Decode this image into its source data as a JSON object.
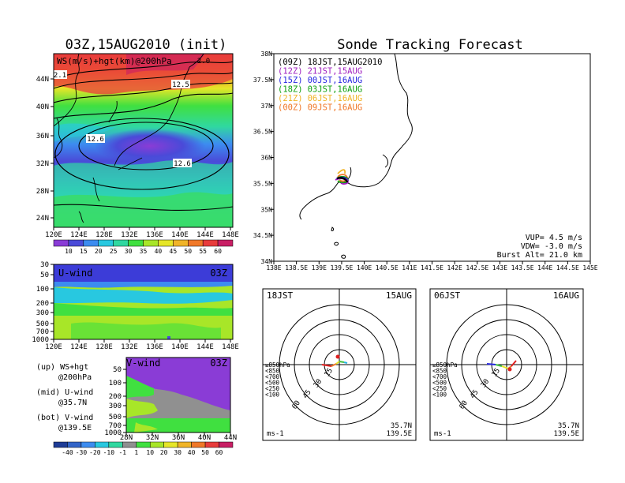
{
  "titles": {
    "left": "03Z,15AUG2010 (init)",
    "right": "Sonde Tracking Forecast"
  },
  "map_panel": {
    "label": "WS(m/s)+hgt(km)@200hPa",
    "lat_ticks": [
      "44N",
      "40N",
      "36N",
      "32N",
      "28N",
      "24N"
    ],
    "lon_ticks": [
      "120E",
      "124E",
      "128E",
      "132E",
      "136E",
      "140E",
      "144E",
      "148E"
    ],
    "contour_labels": [
      "12.6",
      "12.5",
      "12.6",
      "2.1",
      "2.0"
    ],
    "colorbar_ticks": [
      "10",
      "15",
      "20",
      "25",
      "30",
      "35",
      "40",
      "45",
      "50",
      "55",
      "60"
    ],
    "colorbar_colors": [
      "#8a3cd6",
      "#4a4ad8",
      "#3c8cf0",
      "#28c8e0",
      "#30d8a0",
      "#40e040",
      "#a8e628",
      "#e6e628",
      "#f0b428",
      "#f07828",
      "#e83c3c",
      "#c81e64"
    ]
  },
  "u_panel": {
    "label": "U-wind",
    "time": "03Z",
    "y_ticks": [
      "30",
      "50",
      "100",
      "200",
      "300",
      "500",
      "700",
      "1000"
    ],
    "x_ticks": [
      "120E",
      "124E",
      "128E",
      "132E",
      "136E",
      "140E",
      "144E",
      "148E"
    ]
  },
  "v_panel": {
    "label": "V-wind",
    "time": "03Z",
    "y_ticks": [
      "50",
      "100",
      "200",
      "300",
      "500",
      "700",
      "1000"
    ],
    "x_ticks": [
      "28N",
      "32N",
      "36N",
      "40N",
      "44N"
    ]
  },
  "legend_notes": [
    {
      "line1": "(up) WS+hgt",
      "line2": "@200hPa"
    },
    {
      "line1": "(mid) U-wind",
      "line2": "@35.7N"
    },
    {
      "line1": "(bot) V-wind",
      "line2": "@139.5E"
    }
  ],
  "wind_colorbar": {
    "ticks": [
      "-40",
      "-30",
      "-20",
      "-10",
      "-1",
      "1",
      "10",
      "20",
      "30",
      "40",
      "50",
      "60"
    ],
    "colors": [
      "#1e3c96",
      "#3264c8",
      "#3c8cf0",
      "#28c8e0",
      "#30d8a0",
      "#909090",
      "#40e040",
      "#a8e628",
      "#e6e628",
      "#f0b428",
      "#f07828",
      "#e83c3c",
      "#c81e64"
    ]
  },
  "track_panel": {
    "lat_ticks": [
      "38N",
      "37.5N",
      "37N",
      "36.5N",
      "36N",
      "35.5N",
      "35N",
      "34.5N",
      "34N"
    ],
    "lon_ticks": [
      "138E",
      "138.5E",
      "139E",
      "139.5E",
      "140E",
      "140.5E",
      "141E",
      "141.5E",
      "142E",
      "142.5E",
      "143E",
      "143.5E",
      "144E",
      "144.5E",
      "145E"
    ],
    "legend": [
      {
        "z": "(09Z)",
        "jst": "18JST,15AUG2010",
        "color": "#000000"
      },
      {
        "z": "(12Z)",
        "jst": "21JST,15AUG",
        "color": "#a020c0"
      },
      {
        "z": "(15Z)",
        "jst": "00JST,16AUG",
        "color": "#2828e0"
      },
      {
        "z": "(18Z)",
        "jst": "03JST,16AUG",
        "color": "#10a010"
      },
      {
        "z": "(21Z)",
        "jst": "06JST,16AUG",
        "color": "#f0b428"
      },
      {
        "z": "(00Z)",
        "jst": "09JST,16AUG",
        "color": "#f07828"
      }
    ],
    "params": [
      "VUP= 4.5 m/s",
      "VDW= -3.0 m/s",
      "Burst Alt= 21.0 km"
    ]
  },
  "hodographs": [
    {
      "left": "18JST",
      "right": "15AUG",
      "rings": [
        "15",
        "30",
        "45",
        "60"
      ],
      "levels": [
        "≥850hPa",
        "<850",
        "<700",
        "<500",
        "<250",
        "<100"
      ],
      "loc": "35.7N",
      "loc2": "139.5E",
      "unit": "ms-1"
    },
    {
      "left": "06JST",
      "right": "16AUG",
      "rings": [
        "15",
        "30",
        "45",
        "60"
      ],
      "levels": [
        "≥850hPa",
        "<850",
        "<700",
        "<500",
        "<250",
        "<100"
      ],
      "loc": "35.7N",
      "loc2": "139.5E",
      "unit": "ms-1"
    }
  ],
  "hodo_level_colors": [
    "#e02020",
    "#f07828",
    "#e6e628",
    "#40c040",
    "#28b4e0",
    "#2828e0"
  ]
}
